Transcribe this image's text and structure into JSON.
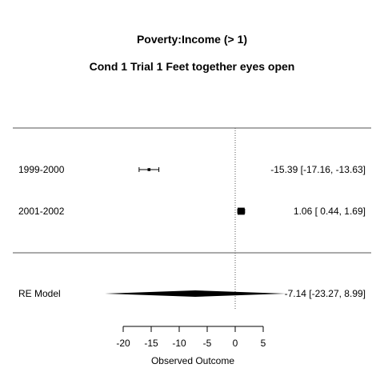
{
  "chart_data": {
    "type": "forest",
    "title": "Poverty:Income (> 1)",
    "subtitle": "Cond 1 Trial 1 Feet together eyes open",
    "xlabel": "Observed Outcome",
    "xlim": [
      -20,
      5
    ],
    "xticks": [
      -20,
      -15,
      -10,
      -5,
      0,
      5
    ],
    "xtick_labels": [
      "-20",
      "-15",
      "-10",
      "-5",
      "0",
      "5"
    ],
    "reference_line": 0,
    "studies": [
      {
        "label": "1999-2000",
        "estimate": -15.39,
        "ci_low": -17.16,
        "ci_high": -13.63,
        "ci_text": "-15.39 [-17.16, -13.63]",
        "weight": 0.05
      },
      {
        "label": "2001-2002",
        "estimate": 1.06,
        "ci_low": 0.44,
        "ci_high": 1.69,
        "ci_text": "1.06 [  0.44,   1.69]",
        "weight": 0.95
      }
    ],
    "summary": {
      "label": "RE Model",
      "estimate": -7.14,
      "ci_low": -23.27,
      "ci_high": 8.99,
      "ci_text": "-7.14 [-23.27,   8.99]"
    }
  }
}
